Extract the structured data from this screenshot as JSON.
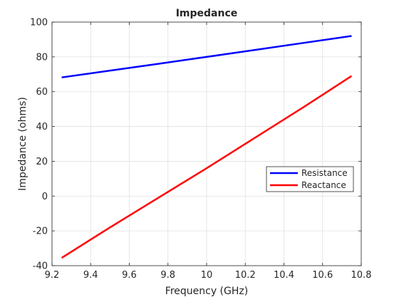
{
  "chart_data": {
    "type": "line",
    "title": "Impedance",
    "xlabel": "Frequency (GHz)",
    "ylabel": "Impedance (ohms)",
    "xlim": [
      9.2,
      10.8
    ],
    "ylim": [
      -40,
      100
    ],
    "xticks": [
      9.2,
      9.4,
      9.6,
      9.8,
      10,
      10.2,
      10.4,
      10.6,
      10.8
    ],
    "yticks": [
      -40,
      -20,
      0,
      20,
      40,
      60,
      80,
      100
    ],
    "xtick_labels": [
      "9.2",
      "9.4",
      "9.6",
      "9.8",
      "10",
      "10.2",
      "10.4",
      "10.6",
      "10.8"
    ],
    "ytick_labels": [
      "-40",
      "-20",
      "0",
      "20",
      "40",
      "60",
      "80",
      "100"
    ],
    "grid": true,
    "legend_position": "right",
    "series": [
      {
        "name": "Resistance",
        "color": "#0000ff",
        "x": [
          9.25,
          9.5,
          9.75,
          10.0,
          10.25,
          10.5,
          10.75
        ],
        "y": [
          68.2,
          72.1,
          76.0,
          80.0,
          84.0,
          88.0,
          92.0
        ]
      },
      {
        "name": "Reactance",
        "color": "#ff0000",
        "x": [
          9.25,
          9.5,
          9.75,
          10.0,
          10.25,
          10.5,
          10.75
        ],
        "y": [
          -35.5,
          -18.0,
          -1.0,
          16.0,
          33.5,
          51.0,
          69.0
        ]
      }
    ]
  }
}
